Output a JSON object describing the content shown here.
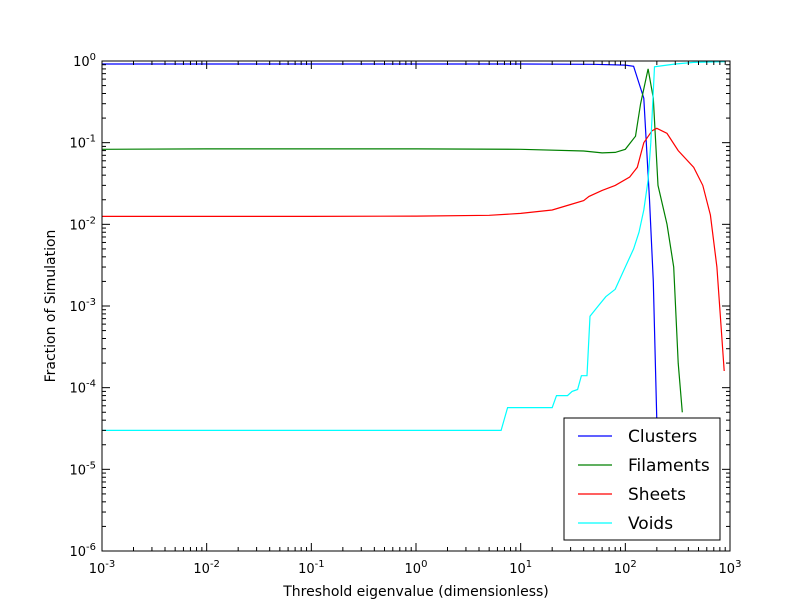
{
  "chart_data": {
    "type": "line",
    "title": "",
    "xlabel": "Threshold eigenvalue (dimensionless)",
    "ylabel": "Fraction of Simulation",
    "xscale": "log",
    "yscale": "log",
    "xlim": [
      0.001,
      1000
    ],
    "ylim": [
      1e-06,
      1
    ],
    "grid": false,
    "legend_position": "lower-right",
    "x_ticks": [
      {
        "value": 0.001,
        "base": "10",
        "exp": "-3"
      },
      {
        "value": 0.01,
        "base": "10",
        "exp": "-2"
      },
      {
        "value": 0.1,
        "base": "10",
        "exp": "-1"
      },
      {
        "value": 1,
        "base": "10",
        "exp": "0"
      },
      {
        "value": 10,
        "base": "10",
        "exp": "1"
      },
      {
        "value": 100,
        "base": "10",
        "exp": "2"
      },
      {
        "value": 1000,
        "base": "10",
        "exp": "3"
      }
    ],
    "y_ticks": [
      {
        "value": 1e-06,
        "base": "10",
        "exp": "-6"
      },
      {
        "value": 1e-05,
        "base": "10",
        "exp": "-5"
      },
      {
        "value": 0.0001,
        "base": "10",
        "exp": "-4"
      },
      {
        "value": 0.001,
        "base": "10",
        "exp": "-3"
      },
      {
        "value": 0.01,
        "base": "10",
        "exp": "-2"
      },
      {
        "value": 0.1,
        "base": "10",
        "exp": "-1"
      },
      {
        "value": 1,
        "base": "10",
        "exp": "0"
      }
    ],
    "series": [
      {
        "name": "Clusters",
        "color": "#0000ff",
        "points": [
          [
            0.001,
            0.92
          ],
          [
            0.01,
            0.92
          ],
          [
            0.1,
            0.92
          ],
          [
            1,
            0.92
          ],
          [
            10,
            0.92
          ],
          [
            50,
            0.91
          ],
          [
            100,
            0.89
          ],
          [
            120,
            0.86
          ],
          [
            150,
            0.35
          ],
          [
            170,
            0.02
          ],
          [
            185,
            0.002
          ],
          [
            200,
            4e-05
          ]
        ]
      },
      {
        "name": "Filaments",
        "color": "#008000",
        "points": [
          [
            0.001,
            0.083
          ],
          [
            0.01,
            0.084
          ],
          [
            0.1,
            0.084
          ],
          [
            1,
            0.084
          ],
          [
            10,
            0.083
          ],
          [
            40,
            0.079
          ],
          [
            60,
            0.075
          ],
          [
            80,
            0.076
          ],
          [
            100,
            0.083
          ],
          [
            125,
            0.12
          ],
          [
            140,
            0.3
          ],
          [
            165,
            0.8
          ],
          [
            185,
            0.35
          ],
          [
            205,
            0.03
          ],
          [
            250,
            0.01
          ],
          [
            290,
            0.003
          ],
          [
            320,
            0.0002
          ],
          [
            350,
            5e-05
          ]
        ]
      },
      {
        "name": "Sheets",
        "color": "#ff0000",
        "points": [
          [
            0.001,
            0.0125
          ],
          [
            0.01,
            0.0125
          ],
          [
            0.1,
            0.0125
          ],
          [
            1,
            0.0126
          ],
          [
            5,
            0.0129
          ],
          [
            10,
            0.0136
          ],
          [
            20,
            0.015
          ],
          [
            30,
            0.0175
          ],
          [
            40,
            0.0195
          ],
          [
            45,
            0.022
          ],
          [
            60,
            0.026
          ],
          [
            80,
            0.03
          ],
          [
            110,
            0.038
          ],
          [
            130,
            0.05
          ],
          [
            150,
            0.1
          ],
          [
            180,
            0.14
          ],
          [
            200,
            0.15
          ],
          [
            250,
            0.13
          ],
          [
            320,
            0.08
          ],
          [
            450,
            0.05
          ],
          [
            550,
            0.03
          ],
          [
            650,
            0.013
          ],
          [
            750,
            0.003
          ],
          [
            880,
            0.00016
          ]
        ]
      },
      {
        "name": "Voids",
        "color": "#00ffff",
        "points": [
          [
            0.001,
            3e-05
          ],
          [
            0.01,
            3e-05
          ],
          [
            0.1,
            3e-05
          ],
          [
            1,
            3e-05
          ],
          [
            6.5,
            3e-05
          ],
          [
            7.5,
            5.7e-05
          ],
          [
            12,
            5.7e-05
          ],
          [
            20,
            5.7e-05
          ],
          [
            22,
            8e-05
          ],
          [
            28,
            8e-05
          ],
          [
            31,
            9e-05
          ],
          [
            35,
            9.5e-05
          ],
          [
            38,
            0.00014
          ],
          [
            43,
            0.00014
          ],
          [
            46,
            0.00075
          ],
          [
            55,
            0.001
          ],
          [
            65,
            0.0013
          ],
          [
            80,
            0.0016
          ],
          [
            100,
            0.003
          ],
          [
            120,
            0.005
          ],
          [
            135,
            0.008
          ],
          [
            150,
            0.015
          ],
          [
            165,
            0.035
          ],
          [
            175,
            0.1
          ],
          [
            190,
            0.85
          ],
          [
            220,
            0.87
          ],
          [
            300,
            0.92
          ],
          [
            450,
            0.96
          ],
          [
            900,
            0.98
          ]
        ]
      }
    ]
  }
}
